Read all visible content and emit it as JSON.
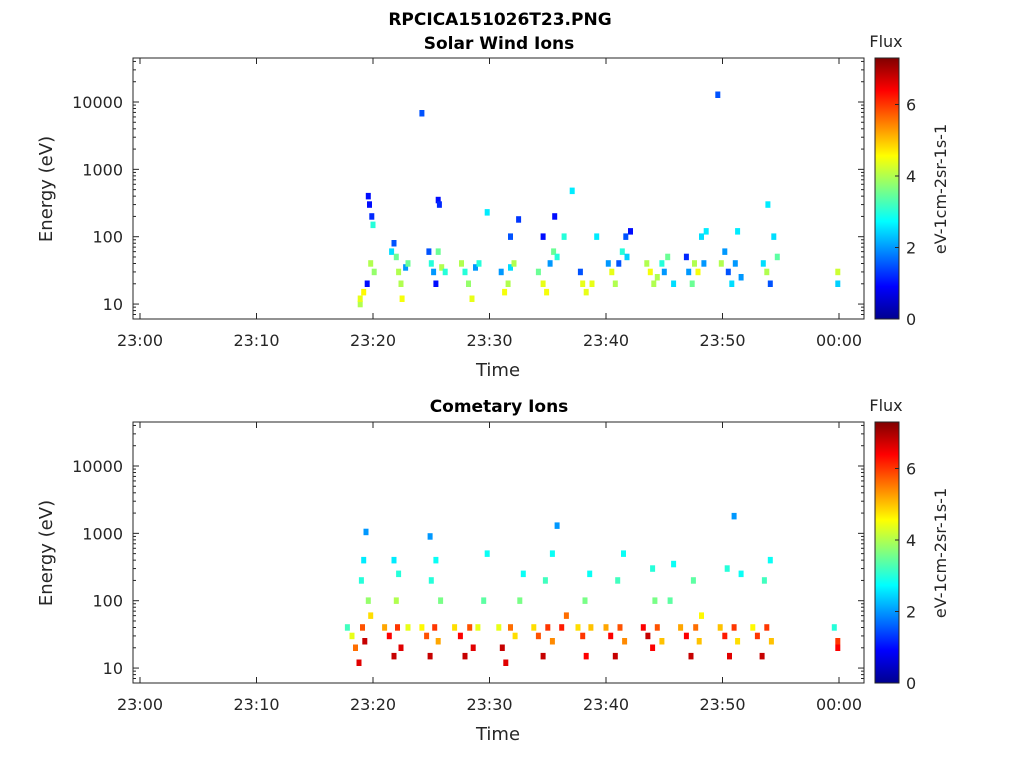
{
  "figure_title": "RPCICA151026T23.PNG",
  "colormap": [
    "#00008f",
    "#0000ff",
    "#0080ff",
    "#00ffff",
    "#80ff80",
    "#ffff00",
    "#ff8000",
    "#ff0000",
    "#800000"
  ],
  "chart_data": [
    {
      "type": "heatmap",
      "title": "Solar Wind Ions",
      "xlabel": "Time",
      "ylabel": "Energy (eV)",
      "x_ticks": [
        "23:00",
        "23:10",
        "23:20",
        "23:30",
        "23:40",
        "23:50",
        "00:00"
      ],
      "x_range_minutes": [
        0,
        62
      ],
      "y_scale": "log",
      "y_ticks": [
        10,
        100,
        1000,
        10000
      ],
      "y_tick_labels": [
        "10",
        "100",
        "1000",
        "10000"
      ],
      "ylim": [
        6,
        45000
      ],
      "colorbar": {
        "title": "Flux",
        "label": "eV-1cm-2sr-1s-1",
        "ticks": [
          "0",
          "2",
          "4",
          "6"
        ],
        "range": [
          0,
          7.3
        ]
      },
      "points": [
        [
          18.9,
          10,
          4
        ],
        [
          18.9,
          12,
          4.4
        ],
        [
          19.2,
          15,
          4.6
        ],
        [
          19.5,
          20,
          1
        ],
        [
          19.8,
          40,
          4
        ],
        [
          20.1,
          30,
          3.8
        ],
        [
          19.6,
          400,
          1
        ],
        [
          19.7,
          300,
          1
        ],
        [
          19.9,
          200,
          1.2
        ],
        [
          20.0,
          150,
          3
        ],
        [
          21.6,
          60,
          2.5
        ],
        [
          21.8,
          80,
          1.5
        ],
        [
          22.0,
          50,
          3.5
        ],
        [
          22.2,
          30,
          4
        ],
        [
          22.4,
          20,
          4
        ],
        [
          22.5,
          12,
          4.5
        ],
        [
          22.8,
          35,
          2
        ],
        [
          23.0,
          40,
          3.5
        ],
        [
          24.2,
          6800,
          1.5
        ],
        [
          24.8,
          60,
          1.5
        ],
        [
          25.0,
          40,
          3
        ],
        [
          25.2,
          30,
          2
        ],
        [
          25.4,
          20,
          1
        ],
        [
          25.6,
          60,
          3.5
        ],
        [
          25.9,
          35,
          4
        ],
        [
          25.6,
          350,
          1
        ],
        [
          25.7,
          300,
          1.2
        ],
        [
          26.2,
          30,
          3
        ],
        [
          27.6,
          40,
          4
        ],
        [
          27.9,
          30,
          3
        ],
        [
          28.2,
          20,
          3.8
        ],
        [
          28.5,
          12,
          4.4
        ],
        [
          28.8,
          35,
          2
        ],
        [
          29.1,
          40,
          3
        ],
        [
          29.8,
          230,
          2.6
        ],
        [
          31.0,
          30,
          2
        ],
        [
          31.3,
          15,
          4.5
        ],
        [
          31.6,
          20,
          4
        ],
        [
          31.8,
          35,
          2.5
        ],
        [
          32.1,
          40,
          4
        ],
        [
          31.8,
          100,
          1.5
        ],
        [
          32.5,
          180,
          1.3
        ],
        [
          34.2,
          30,
          3.5
        ],
        [
          34.6,
          20,
          4.4
        ],
        [
          34.9,
          15,
          4.5
        ],
        [
          35.2,
          40,
          2
        ],
        [
          35.5,
          60,
          3.5
        ],
        [
          35.8,
          50,
          3
        ],
        [
          34.6,
          100,
          1
        ],
        [
          35.6,
          200,
          1
        ],
        [
          37.1,
          480,
          2.6
        ],
        [
          36.4,
          100,
          3
        ],
        [
          37.8,
          30,
          1.5
        ],
        [
          38.0,
          20,
          4.4
        ],
        [
          38.3,
          15,
          4.4
        ],
        [
          38.8,
          20,
          4.4
        ],
        [
          39.2,
          100,
          2.6
        ],
        [
          40.2,
          40,
          2
        ],
        [
          40.5,
          30,
          4.4
        ],
        [
          40.8,
          20,
          4
        ],
        [
          41.1,
          40,
          1.5
        ],
        [
          41.4,
          60,
          3
        ],
        [
          41.8,
          50,
          2.4
        ],
        [
          42.1,
          120,
          1
        ],
        [
          41.7,
          100,
          1.5
        ],
        [
          43.5,
          40,
          4
        ],
        [
          43.8,
          30,
          4.5
        ],
        [
          44.1,
          20,
          4
        ],
        [
          44.4,
          25,
          4
        ],
        [
          44.8,
          40,
          3
        ],
        [
          45.0,
          30,
          2
        ],
        [
          45.3,
          50,
          3.5
        ],
        [
          45.8,
          20,
          2.5
        ],
        [
          46.9,
          50,
          1.2
        ],
        [
          47.1,
          30,
          2
        ],
        [
          47.4,
          20,
          3.5
        ],
        [
          47.6,
          40,
          4
        ],
        [
          47.9,
          30,
          4.5
        ],
        [
          48.2,
          100,
          2.5
        ],
        [
          48.4,
          40,
          2
        ],
        [
          48.6,
          120,
          2.6
        ],
        [
          49.6,
          12800,
          1.5
        ],
        [
          49.9,
          40,
          4
        ],
        [
          50.2,
          60,
          2
        ],
        [
          50.5,
          30,
          1.5
        ],
        [
          50.8,
          20,
          2.5
        ],
        [
          51.1,
          40,
          2
        ],
        [
          51.3,
          120,
          2.6
        ],
        [
          51.6,
          25,
          2
        ],
        [
          53.5,
          40,
          2.5
        ],
        [
          53.8,
          30,
          4
        ],
        [
          54.1,
          20,
          1.5
        ],
        [
          54.4,
          100,
          2.5
        ],
        [
          54.7,
          50,
          3.4
        ],
        [
          53.9,
          300,
          2.6
        ],
        [
          59.9,
          20,
          2.4
        ],
        [
          59.9,
          30,
          4.2
        ]
      ]
    },
    {
      "type": "heatmap",
      "title": "Cometary Ions",
      "xlabel": "Time",
      "ylabel": "Energy (eV)",
      "x_ticks": [
        "23:00",
        "23:10",
        "23:20",
        "23:30",
        "23:40",
        "23:50",
        "00:00"
      ],
      "x_range_minutes": [
        0,
        62
      ],
      "y_scale": "log",
      "y_ticks": [
        10,
        100,
        1000,
        10000
      ],
      "y_tick_labels": [
        "10",
        "100",
        "1000",
        "10000"
      ],
      "ylim": [
        6,
        45000
      ],
      "colorbar": {
        "title": "Flux",
        "label": "eV-1cm-2sr-1s-1",
        "ticks": [
          "0",
          "2",
          "4",
          "6"
        ],
        "range": [
          0,
          7.3
        ]
      },
      "points": [
        [
          17.8,
          40,
          3.2
        ],
        [
          18.2,
          30,
          4.4
        ],
        [
          18.5,
          20,
          5.6
        ],
        [
          18.8,
          12,
          6.6
        ],
        [
          19.1,
          40,
          5.8
        ],
        [
          19.3,
          25,
          6.8
        ],
        [
          19.0,
          200,
          3
        ],
        [
          19.2,
          400,
          2.6
        ],
        [
          19.6,
          100,
          3.8
        ],
        [
          19.8,
          60,
          4.8
        ],
        [
          19.4,
          1050,
          2
        ],
        [
          21.0,
          40,
          5.2
        ],
        [
          21.4,
          30,
          6.4
        ],
        [
          21.8,
          15,
          6.8
        ],
        [
          22.1,
          40,
          6
        ],
        [
          22.4,
          20,
          6.6
        ],
        [
          22.0,
          100,
          4
        ],
        [
          21.8,
          400,
          2.6
        ],
        [
          22.2,
          250,
          3
        ],
        [
          23.0,
          40,
          4.4
        ],
        [
          24.2,
          40,
          4.6
        ],
        [
          24.6,
          30,
          5.8
        ],
        [
          24.9,
          15,
          6.8
        ],
        [
          25.3,
          40,
          6
        ],
        [
          25.6,
          25,
          5.2
        ],
        [
          25.0,
          200,
          3
        ],
        [
          25.4,
          400,
          2.8
        ],
        [
          25.8,
          100,
          3.6
        ],
        [
          24.9,
          900,
          2
        ],
        [
          27.0,
          40,
          4.8
        ],
        [
          27.5,
          30,
          6.4
        ],
        [
          27.9,
          15,
          6.8
        ],
        [
          28.3,
          40,
          5.8
        ],
        [
          28.6,
          20,
          6.6
        ],
        [
          29.0,
          40,
          4.4
        ],
        [
          29.8,
          500,
          2.8
        ],
        [
          29.5,
          100,
          3.4
        ],
        [
          30.8,
          40,
          4.4
        ],
        [
          31.1,
          20,
          6.8
        ],
        [
          31.4,
          12,
          6.6
        ],
        [
          31.8,
          40,
          5.6
        ],
        [
          32.2,
          30,
          4.8
        ],
        [
          32.6,
          100,
          3.6
        ],
        [
          32.9,
          250,
          2.8
        ],
        [
          33.8,
          40,
          4.8
        ],
        [
          34.2,
          30,
          5.8
        ],
        [
          34.6,
          15,
          6.8
        ],
        [
          35.0,
          40,
          6
        ],
        [
          35.4,
          25,
          5.4
        ],
        [
          34.8,
          200,
          3.2
        ],
        [
          35.4,
          500,
          2.8
        ],
        [
          35.8,
          1300,
          2
        ],
        [
          36.2,
          40,
          6.2
        ],
        [
          36.6,
          60,
          5.6
        ],
        [
          37.6,
          40,
          4.8
        ],
        [
          38.0,
          30,
          6
        ],
        [
          38.3,
          15,
          6.4
        ],
        [
          38.7,
          40,
          5
        ],
        [
          38.2,
          100,
          3.6
        ],
        [
          38.6,
          250,
          2.8
        ],
        [
          40.0,
          40,
          5.2
        ],
        [
          40.4,
          30,
          6.4
        ],
        [
          40.8,
          15,
          6.8
        ],
        [
          41.2,
          40,
          5.8
        ],
        [
          41.6,
          25,
          5.4
        ],
        [
          41.0,
          200,
          3.2
        ],
        [
          41.5,
          500,
          2.8
        ],
        [
          43.2,
          40,
          6.4
        ],
        [
          43.6,
          30,
          6.8
        ],
        [
          44.0,
          20,
          6.4
        ],
        [
          44.4,
          40,
          5.8
        ],
        [
          44.8,
          25,
          5
        ],
        [
          44.2,
          100,
          3.6
        ],
        [
          44.0,
          300,
          3
        ],
        [
          45.5,
          100,
          3.4
        ],
        [
          45.8,
          350,
          2.8
        ],
        [
          46.4,
          40,
          5.2
        ],
        [
          46.9,
          30,
          6.4
        ],
        [
          47.3,
          15,
          6.8
        ],
        [
          47.7,
          40,
          5.6
        ],
        [
          48.0,
          25,
          5
        ],
        [
          47.5,
          200,
          3.4
        ],
        [
          48.2,
          60,
          4.6
        ],
        [
          49.8,
          40,
          5
        ],
        [
          50.2,
          30,
          6.2
        ],
        [
          50.6,
          15,
          6.6
        ],
        [
          51.0,
          40,
          6
        ],
        [
          51.3,
          25,
          4.8
        ],
        [
          50.4,
          300,
          3
        ],
        [
          51.0,
          1800,
          2
        ],
        [
          51.6,
          250,
          2.8
        ],
        [
          52.6,
          40,
          4.6
        ],
        [
          53.0,
          30,
          6
        ],
        [
          53.4,
          15,
          6.8
        ],
        [
          53.8,
          40,
          6
        ],
        [
          54.2,
          25,
          5
        ],
        [
          53.6,
          200,
          3.2
        ],
        [
          54.1,
          400,
          2.8
        ],
        [
          59.6,
          40,
          3
        ],
        [
          59.9,
          25,
          6
        ],
        [
          59.9,
          20,
          6.4
        ]
      ]
    }
  ]
}
